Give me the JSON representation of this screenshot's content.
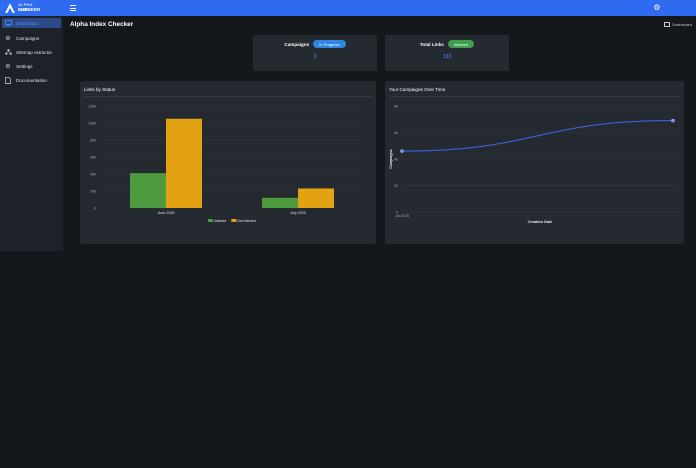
{
  "app": {
    "logo_line1": "ALPHA INDEX",
    "logo_line2": "CHECKER",
    "page_title": "Alpha Index Checker",
    "breadcrumb": "Dashboard"
  },
  "sidebar": {
    "items": [
      {
        "label": "Dashboard",
        "icon": "monitor-icon",
        "active": true
      },
      {
        "label": "Campaigns",
        "icon": "gear-icon",
        "active": false
      },
      {
        "label": "Sitemap extractor",
        "icon": "sitemap-icon",
        "active": false
      },
      {
        "label": "Settings",
        "icon": "gear-icon",
        "active": false
      },
      {
        "label": "Documentation",
        "icon": "document-icon",
        "active": false
      }
    ]
  },
  "stats": {
    "campaigns": {
      "label": "Campaigns",
      "badge": "In Progress",
      "value": "3"
    },
    "links": {
      "label": "Total Links",
      "badge": "Indexed",
      "value": "133"
    }
  },
  "colors": {
    "accent": "#2f6bf0",
    "indexed": "#4e9a3f",
    "not_indexed": "#e3a212",
    "line": "#3a63e0"
  },
  "charts": {
    "status": {
      "title": "Links by Status"
    },
    "campaigns": {
      "title": "Your Campaigns Over Time"
    }
  },
  "chart_data": [
    {
      "type": "bar",
      "title": "Links by Status",
      "categories": [
        "June 2025",
        "July 2025"
      ],
      "series": [
        {
          "name": "Indexed",
          "values": [
            410,
            120
          ]
        },
        {
          "name": "Not Indexed",
          "values": [
            1050,
            230
          ]
        }
      ],
      "yticks": [
        "0",
        "200",
        "400",
        "600",
        "800",
        "1000",
        "1200"
      ],
      "ylim": [
        0,
        1200
      ],
      "grid": true,
      "legend": "bottom"
    },
    {
      "type": "line",
      "title": "Your Campaigns Over Time",
      "xlabel": "Creation Date",
      "ylabel": "Campaigns",
      "x": [
        "Jun 2025",
        "Jul 2025"
      ],
      "xticks": [
        "Jun 2025"
      ],
      "yticks": [
        "0",
        "20",
        "40",
        "60",
        "80"
      ],
      "ylim": [
        0,
        80
      ],
      "series": [
        {
          "values": [
            46,
            69
          ]
        }
      ],
      "grid": true
    }
  ]
}
